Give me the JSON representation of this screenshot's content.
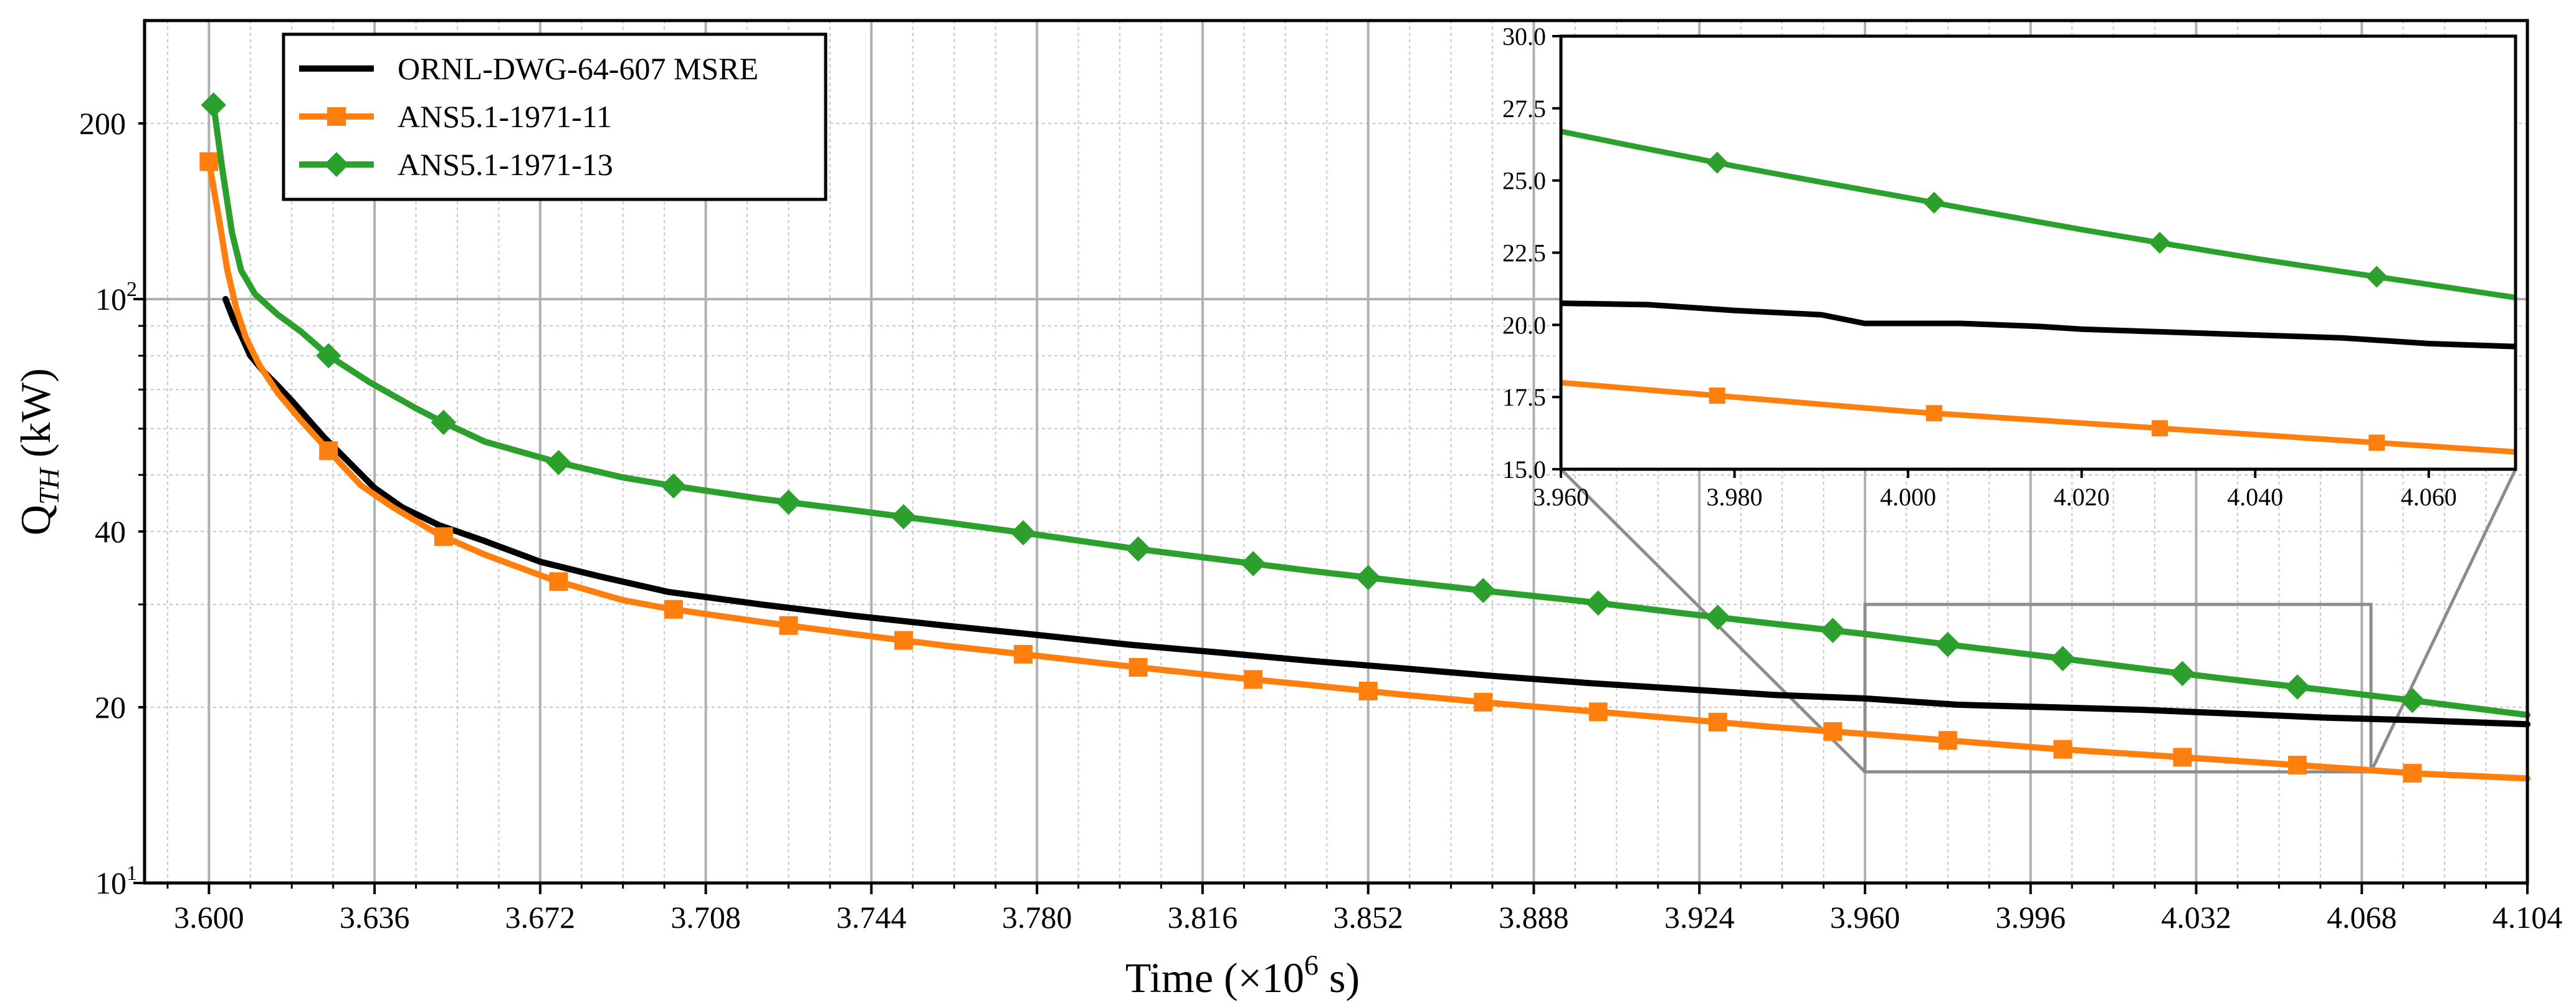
{
  "chart_data": {
    "type": "line",
    "title": "",
    "xlabel": {
      "prefix": "Time (×10",
      "exp": "6",
      "suffix": " s)"
    },
    "ylabel": {
      "base": "Q",
      "sub": "TH",
      "suffix": " (kW)"
    },
    "x_scale": "linear",
    "y_scale": "log",
    "xlim": [
      3.586,
      4.104
    ],
    "ylim": [
      10,
      300
    ],
    "x_ticks": [
      3.6,
      3.636,
      3.672,
      3.708,
      3.744,
      3.78,
      3.816,
      3.852,
      3.888,
      3.924,
      3.96,
      3.996,
      4.032,
      4.068,
      4.104
    ],
    "x_tick_labels": [
      "3.600",
      "3.636",
      "3.672",
      "3.708",
      "3.744",
      "3.780",
      "3.816",
      "3.852",
      "3.888",
      "3.924",
      "3.960",
      "3.996",
      "4.032",
      "4.068",
      "4.104"
    ],
    "y_ticks": [
      {
        "value": 10,
        "base": "10",
        "exp": "1"
      },
      {
        "value": 20,
        "text": "20"
      },
      {
        "value": 40,
        "text": "40"
      },
      {
        "value": 100,
        "base": "10",
        "exp": "2"
      },
      {
        "value": 200,
        "text": "200"
      }
    ],
    "grid": true,
    "legend_position": "top-left",
    "series": [
      {
        "name": "ORNL-DWG-64-607 MSRE",
        "color": "#000000",
        "marker": "none",
        "x": [
          3.6036,
          3.6054,
          3.6072,
          3.609,
          3.612,
          3.615,
          3.618,
          3.621,
          3.625,
          3.63,
          3.636,
          3.642,
          3.65,
          3.66,
          3.672,
          3.685,
          3.7,
          3.72,
          3.74,
          3.76,
          3.78,
          3.8,
          3.82,
          3.84,
          3.86,
          3.88,
          3.9,
          3.92,
          3.94,
          3.96,
          3.98,
          4.0,
          4.02,
          4.04,
          4.06,
          4.08,
          4.104
        ],
        "y": [
          100,
          92,
          86,
          80,
          75,
          71,
          67,
          63,
          58,
          53,
          47.5,
          44,
          41,
          38.5,
          35.5,
          33.5,
          31.5,
          30,
          28.7,
          27.6,
          26.6,
          25.6,
          24.8,
          24.0,
          23.3,
          22.6,
          22.0,
          21.5,
          21.0,
          20.7,
          20.2,
          20.0,
          19.8,
          19.5,
          19.2,
          19.0,
          18.7
        ]
      },
      {
        "name": "ANS5.1-1971-11",
        "color": "#ff7f0e",
        "marker": "square",
        "x": [
          3.6,
          3.602,
          3.604,
          3.606,
          3.608,
          3.611,
          3.615,
          3.62,
          3.626,
          3.633,
          3.64,
          3.65,
          3.66,
          3.675,
          3.69,
          3.7,
          3.72,
          3.74,
          3.76,
          3.78,
          3.8,
          3.82,
          3.84,
          3.86,
          3.88,
          3.9,
          3.92,
          3.94,
          3.96,
          3.98,
          4.0,
          4.02,
          4.04,
          4.06,
          4.08,
          4.104
        ],
        "y": [
          172,
          140,
          112,
          96,
          86,
          77,
          69,
          62,
          55,
          48,
          44,
          39.5,
          36.5,
          33.0,
          30.5,
          29.5,
          28.0,
          26.7,
          25.5,
          24.5,
          23.5,
          22.6,
          21.8,
          21.0,
          20.3,
          19.7,
          19.1,
          18.5,
          18.0,
          17.5,
          17.0,
          16.6,
          16.2,
          15.8,
          15.4,
          15.1
        ],
        "marker_x": [
          3.6,
          3.626,
          3.651,
          3.676,
          3.701,
          3.726,
          3.751,
          3.777,
          3.802,
          3.827,
          3.852,
          3.877,
          3.902,
          3.928,
          3.953,
          3.978,
          4.003,
          4.029,
          4.054,
          4.079
        ]
      },
      {
        "name": "ANS5.1-1971-13",
        "color": "#2ca02c",
        "marker": "diamond",
        "x": [
          3.601,
          3.603,
          3.605,
          3.607,
          3.61,
          3.615,
          3.62,
          3.626,
          3.635,
          3.645,
          3.651,
          3.66,
          3.676,
          3.69,
          3.7,
          3.72,
          3.74,
          3.76,
          3.78,
          3.8,
          3.82,
          3.84,
          3.86,
          3.88,
          3.9,
          3.92,
          3.94,
          3.96,
          3.98,
          4.0,
          4.02,
          4.04,
          4.06,
          4.08,
          4.104
        ],
        "y": [
          215,
          165,
          130,
          112,
          102,
          94,
          88,
          80,
          72,
          65,
          61.5,
          57,
          52.5,
          49.5,
          48,
          45.5,
          43.5,
          41.5,
          39.5,
          37.5,
          35.8,
          34.2,
          32.8,
          31.5,
          30.3,
          29.0,
          27.8,
          26.7,
          25.5,
          24.4,
          23.3,
          22.3,
          21.4,
          20.5,
          19.4
        ],
        "marker_x": [
          3.601,
          3.626,
          3.651,
          3.676,
          3.701,
          3.726,
          3.751,
          3.777,
          3.802,
          3.827,
          3.852,
          3.877,
          3.902,
          3.928,
          3.953,
          3.978,
          4.003,
          4.029,
          4.054,
          4.079
        ]
      }
    ],
    "inset": {
      "xlim": [
        3.96,
        4.07
      ],
      "ylim": [
        15.0,
        30.0
      ],
      "x_ticks": [
        3.96,
        3.98,
        4.0,
        4.02,
        4.04,
        4.06
      ],
      "x_tick_labels": [
        "3.960",
        "3.980",
        "4.000",
        "4.020",
        "4.040",
        "4.060"
      ],
      "y_ticks": [
        15.0,
        17.5,
        20.0,
        22.5,
        25.0,
        27.5,
        30.0
      ],
      "y_tick_labels": [
        "15.0",
        "17.5",
        "20.0",
        "22.5",
        "25.0",
        "27.5",
        "30.0"
      ],
      "zoom_box": {
        "xlim": [
          3.96,
          4.07
        ],
        "ylim": [
          15.5,
          30
        ]
      }
    }
  }
}
